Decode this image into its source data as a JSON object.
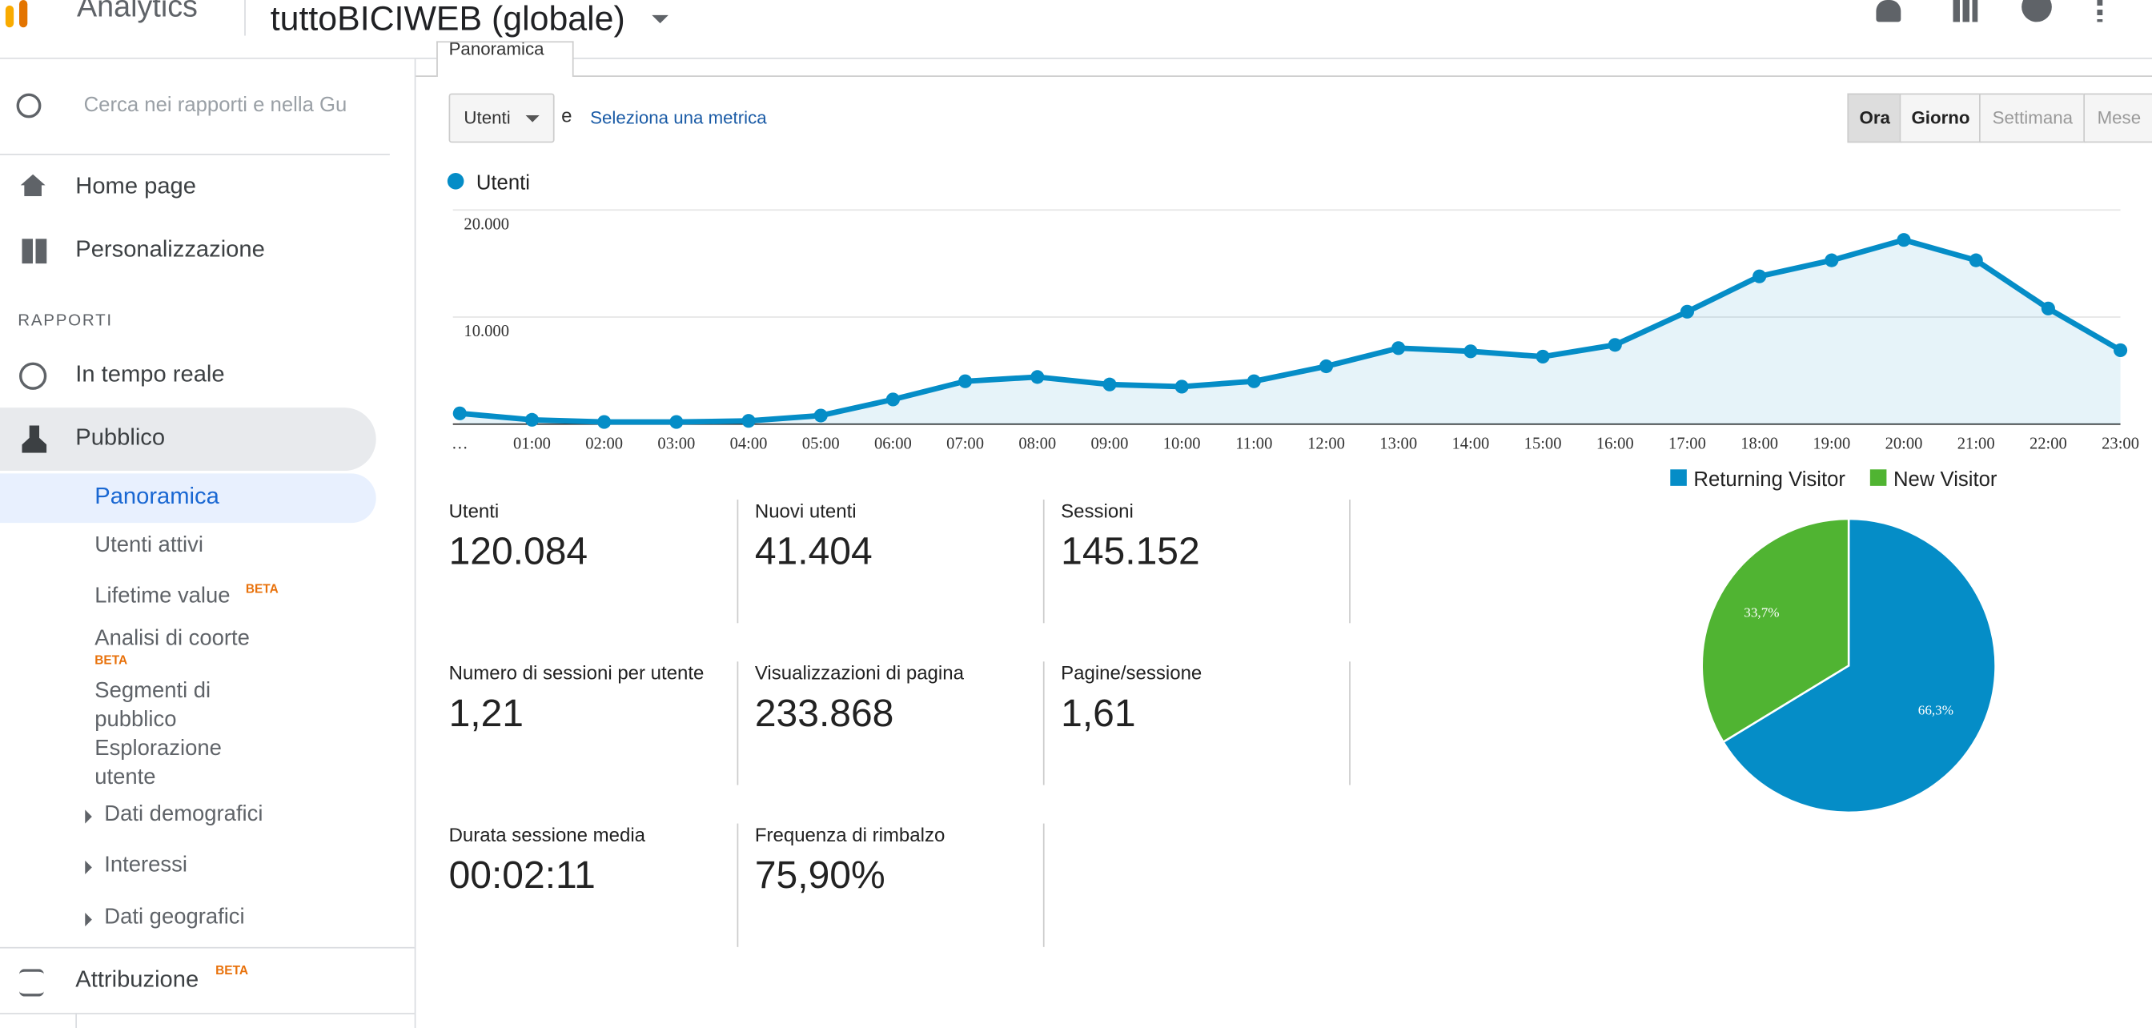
{
  "header": {
    "product": "Analytics",
    "property": "tuttoBICIWEB (globale)",
    "tab": "Panoramica"
  },
  "sidebar": {
    "search_placeholder": "Cerca nei rapporti e nella Gu",
    "home": "Home page",
    "custom": "Personalizzazione",
    "section": "RAPPORTI",
    "realtime": "In tempo reale",
    "audience": "Pubblico",
    "overview": "Panoramica",
    "active_users": "Utenti attivi",
    "lifetime": {
      "label": "Lifetime value",
      "badge": "BETA"
    },
    "cohort": {
      "label": "Analisi di coorte",
      "badge": "BETA"
    },
    "segments": "Segmenti di pubblico",
    "explorer": "Esplorazione utente",
    "demographics": "Dati demografici",
    "interests": "Interessi",
    "geo": "Dati geografici",
    "attribution": {
      "label": "Attribuzione",
      "badge": "BETA"
    }
  },
  "controls": {
    "metric": "Utenti",
    "and": "e",
    "select_metric": "Seleziona una metrica",
    "granularity": [
      "Ora",
      "Giorno",
      "Settimana",
      "Mese"
    ]
  },
  "chart_data": [
    {
      "type": "line",
      "categories": [
        "…",
        "01:00",
        "02:00",
        "03:00",
        "04:00",
        "05:00",
        "06:00",
        "07:00",
        "08:00",
        "09:00",
        "10:00",
        "11:00",
        "12:00",
        "13:00",
        "14:00",
        "15:00",
        "16:00",
        "17:00",
        "18:00",
        "19:00",
        "20:00",
        "21:00",
        "22:00",
        "23:00"
      ],
      "series": [
        {
          "name": "Utenti",
          "color": "#058dc7",
          "values": [
            1000,
            400,
            200,
            200,
            300,
            800,
            2300,
            4000,
            4400,
            3700,
            3500,
            4000,
            5400,
            7100,
            6800,
            6300,
            7400,
            10500,
            13800,
            15300,
            17200,
            15300,
            10800,
            6900
          ]
        }
      ],
      "ylim": [
        0,
        20000
      ],
      "yticks": [
        {
          "value": 10000,
          "label": "10.000"
        },
        {
          "value": 20000,
          "label": "20.000"
        }
      ],
      "grid": true
    },
    {
      "type": "pie",
      "categories": [
        "Returning Visitor",
        "New Visitor"
      ],
      "values": [
        66.3,
        33.7
      ],
      "value_labels": [
        "66,3%",
        "33,7%"
      ],
      "colors": [
        "#058dc7",
        "#50b432"
      ]
    }
  ],
  "metrics": [
    {
      "label": "Utenti",
      "value": "120.084"
    },
    {
      "label": "Nuovi utenti",
      "value": "41.404"
    },
    {
      "label": "Sessioni",
      "value": "145.152"
    },
    {
      "label": "Numero di sessioni per utente",
      "value": "1,21"
    },
    {
      "label": "Visualizzazioni di pagina",
      "value": "233.868"
    },
    {
      "label": "Pagine/sessione",
      "value": "1,61"
    },
    {
      "label": "Durata sessione media",
      "value": "00:02:11"
    },
    {
      "label": "Frequenza di rimbalzo",
      "value": "75,90%"
    }
  ]
}
